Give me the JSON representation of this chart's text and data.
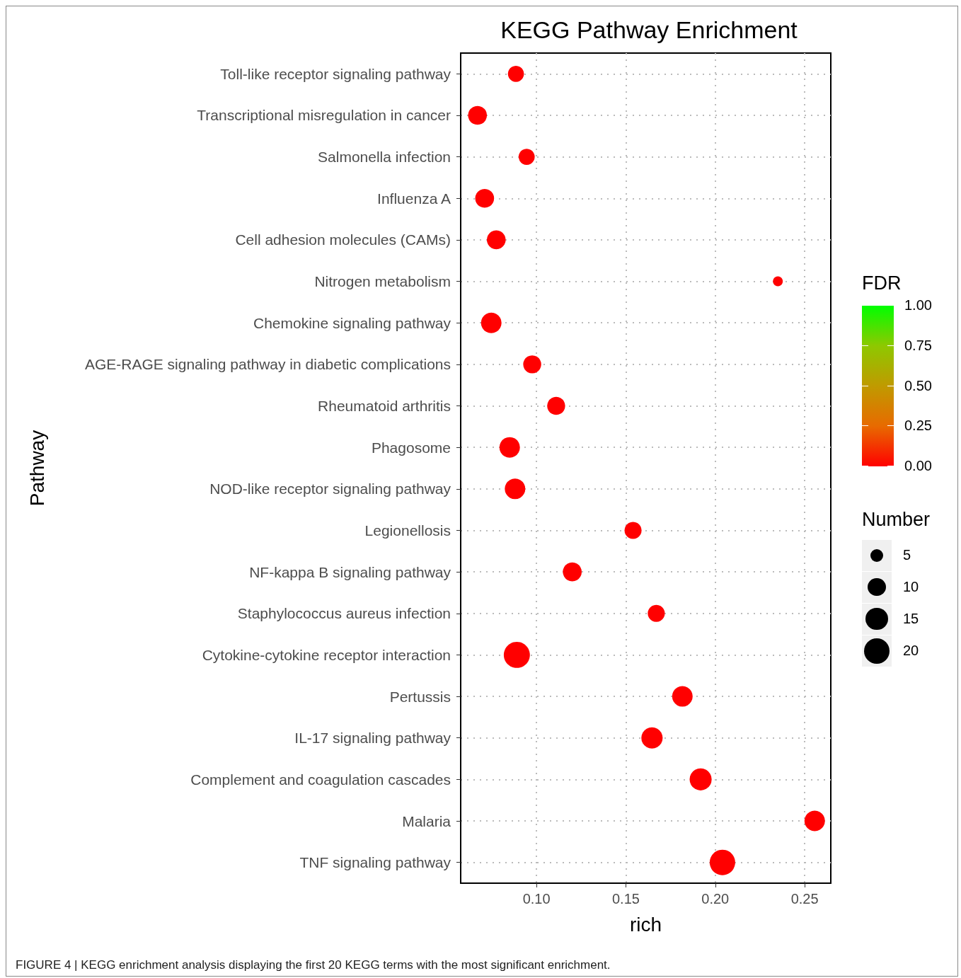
{
  "chart_data": {
    "type": "bubble",
    "title": "KEGG Pathway Enrichment",
    "xlabel": "rich",
    "ylabel": "Pathway",
    "clabel": "FDR",
    "legend_title": "Number",
    "categories": [
      "Toll-like receptor signaling pathway",
      "Transcriptional misregulation in cancer",
      "Salmonella infection",
      "Influenza A",
      "Cell adhesion molecules (CAMs)",
      "Nitrogen metabolism",
      "Chemokine signaling pathway",
      "AGE-RAGE signaling pathway in diabetic complications",
      "Rheumatoid arthritis",
      "Phagosome",
      "NOD-like receptor signaling pathway",
      "Legionellosis",
      "NF-kappa B signaling pathway",
      "Staphylococcus aureus infection",
      "Cytokine-cytokine receptor interaction",
      "Pertussis",
      "IL-17 signaling pathway",
      "Complement and coagulation cascades",
      "Malaria",
      "TNF signaling pathway"
    ],
    "values": [
      0.0885,
      0.067,
      0.0945,
      0.071,
      0.0775,
      0.235,
      0.0747,
      0.0976,
      0.111,
      0.085,
      0.088,
      0.154,
      0.12,
      0.167,
      0.089,
      0.1816,
      0.1646,
      0.1918,
      0.2556,
      0.204
    ],
    "sizes": [
      8,
      11,
      8,
      11,
      11,
      3,
      13,
      10,
      10,
      13,
      13,
      9,
      11,
      9,
      21,
      13,
      14,
      15,
      13,
      20
    ],
    "size_legend": [
      5,
      10,
      15,
      20
    ],
    "cvalues": [
      0,
      0,
      0,
      0,
      0,
      0,
      0,
      0,
      0,
      0,
      0,
      0,
      0,
      0,
      0,
      0,
      0,
      0,
      0,
      0
    ],
    "clim": [
      0,
      1
    ],
    "cticks": [
      {
        "value": 0,
        "label": "0.00"
      },
      {
        "value": 0.25,
        "label": "0.25"
      },
      {
        "value": 0.5,
        "label": "0.50"
      },
      {
        "value": 0.75,
        "label": "0.75"
      },
      {
        "value": 1,
        "label": "1.00"
      }
    ],
    "orientation": "horizontal",
    "xlim": [
      0.0576,
      0.2646
    ],
    "xticks": [
      {
        "value": 0.1,
        "label": "0.10"
      },
      {
        "value": 0.15,
        "label": "0.15"
      },
      {
        "value": 0.2,
        "label": "0.20"
      },
      {
        "value": 0.25,
        "label": "0.25"
      }
    ],
    "grid": true,
    "marker": "circle",
    "annotations": [
      "FIGURE 4 | KEGG enrichment analysis displaying the first 20 KEGG terms with the most significant enrichment."
    ]
  }
}
